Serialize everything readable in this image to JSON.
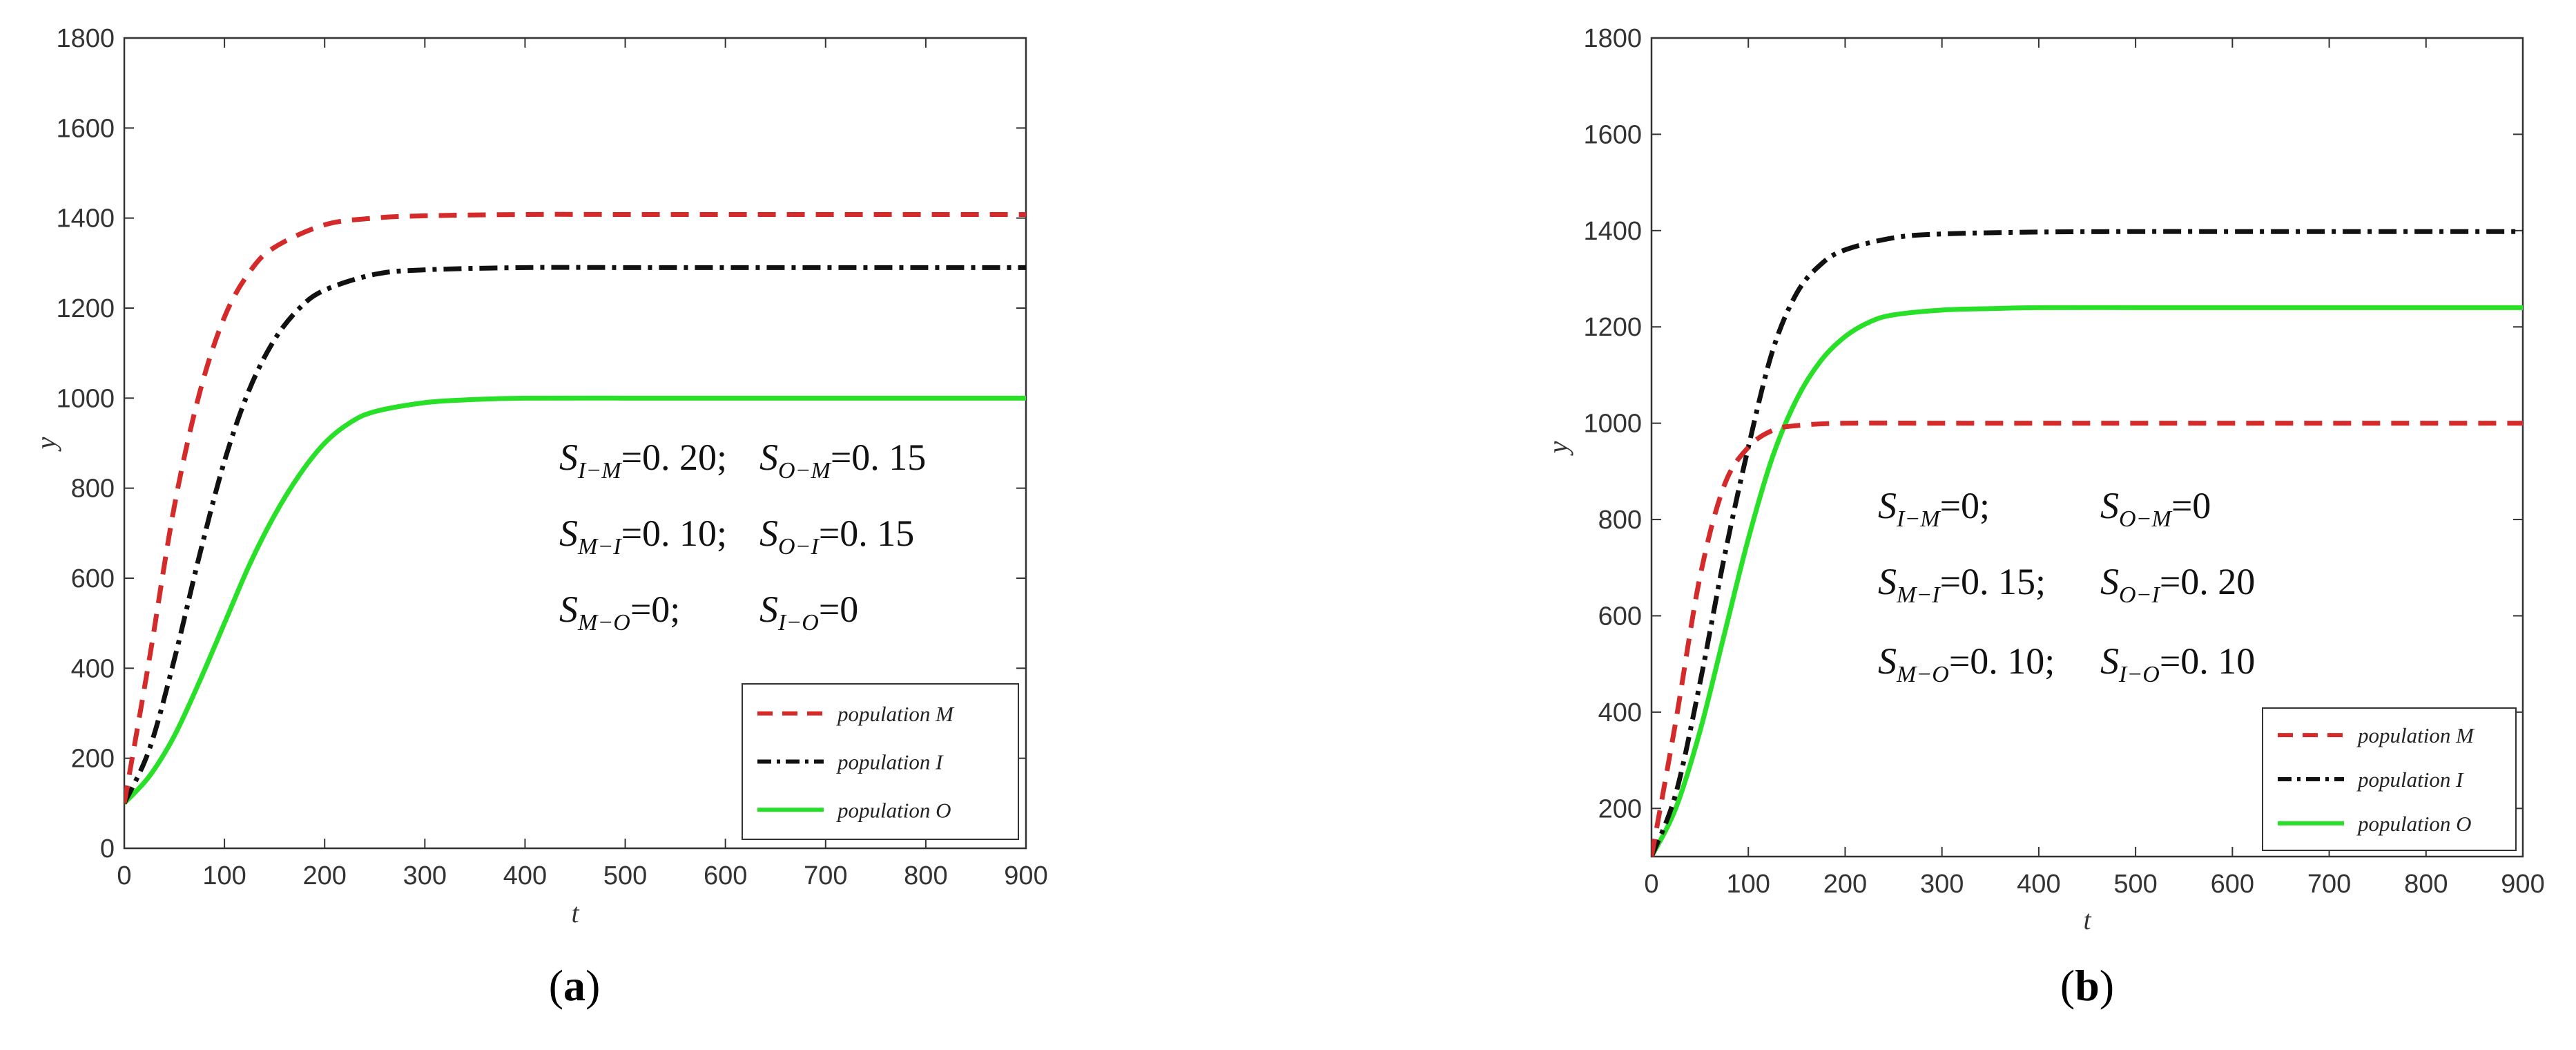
{
  "chart_data": [
    {
      "type": "line",
      "panel_label": "a",
      "xlabel": "t",
      "ylabel": "y",
      "xlim": [
        0,
        900
      ],
      "ylim": [
        0,
        1800
      ],
      "xticks": [
        0,
        100,
        200,
        300,
        400,
        500,
        600,
        700,
        800,
        900
      ],
      "yticks": [
        0,
        200,
        400,
        600,
        800,
        1000,
        1200,
        1400,
        1600,
        1800
      ],
      "legend_position": "bottom-right",
      "series": [
        {
          "name": "population M",
          "color": "#d42a2a",
          "style": "dashed",
          "x": [
            0,
            25,
            50,
            75,
            100,
            125,
            150,
            200,
            250,
            300,
            400,
            500,
            600,
            700,
            800,
            900
          ],
          "y": [
            100,
            420,
            760,
            1010,
            1180,
            1280,
            1335,
            1385,
            1400,
            1405,
            1408,
            1408,
            1408,
            1408,
            1408,
            1408
          ]
        },
        {
          "name": "population I",
          "color": "#111111",
          "style": "dashdot",
          "x": [
            0,
            25,
            50,
            75,
            100,
            125,
            150,
            175,
            200,
            250,
            300,
            400,
            500,
            600,
            700,
            800,
            900
          ],
          "y": [
            100,
            220,
            420,
            650,
            860,
            1020,
            1130,
            1200,
            1240,
            1275,
            1285,
            1290,
            1290,
            1290,
            1290,
            1290,
            1290
          ]
        },
        {
          "name": "population O",
          "color": "#28e028",
          "style": "solid",
          "x": [
            0,
            25,
            50,
            75,
            100,
            125,
            150,
            175,
            200,
            225,
            250,
            300,
            350,
            400,
            500,
            600,
            700,
            800,
            900
          ],
          "y": [
            100,
            160,
            250,
            370,
            500,
            630,
            740,
            830,
            900,
            945,
            970,
            990,
            997,
            1000,
            1000,
            1000,
            1000,
            1000,
            1000
          ]
        }
      ],
      "annotations": [
        {
          "items": [
            {
              "S": "S",
              "sub": "I−M",
              "val": "=0. 20;"
            },
            {
              "S": "S",
              "sub": "O−M",
              "val": "=0. 15"
            }
          ]
        },
        {
          "items": [
            {
              "S": "S",
              "sub": "M−I",
              "val": "=0. 10;"
            },
            {
              "S": "S",
              "sub": "O−I",
              "val": "=0. 15"
            }
          ]
        },
        {
          "items": [
            {
              "S": "S",
              "sub": "M−O",
              "val": "=0;"
            },
            {
              "S": "S",
              "sub": "I−O",
              "val": "=0"
            }
          ]
        }
      ]
    },
    {
      "type": "line",
      "panel_label": "b",
      "xlabel": "t",
      "ylabel": "y",
      "xlim": [
        0,
        900
      ],
      "ylim": [
        100,
        1800
      ],
      "xticks": [
        0,
        100,
        200,
        300,
        400,
        500,
        600,
        700,
        800,
        900
      ],
      "yticks": [
        200,
        400,
        600,
        800,
        1000,
        1200,
        1400,
        1600,
        1800
      ],
      "legend_position": "bottom-right",
      "series": [
        {
          "name": "population M",
          "color": "#d42a2a",
          "style": "dashed",
          "x": [
            0,
            25,
            50,
            75,
            100,
            125,
            150,
            200,
            300,
            400,
            500,
            600,
            700,
            800,
            900
          ],
          "y": [
            100,
            380,
            680,
            870,
            950,
            985,
            995,
            1000,
            1000,
            1000,
            1000,
            1000,
            1000,
            1000,
            1000
          ]
        },
        {
          "name": "population I",
          "color": "#111111",
          "style": "dashdot",
          "x": [
            0,
            25,
            50,
            75,
            100,
            125,
            150,
            175,
            200,
            250,
            300,
            400,
            500,
            600,
            700,
            800,
            900
          ],
          "y": [
            100,
            230,
            460,
            720,
            950,
            1150,
            1270,
            1330,
            1360,
            1385,
            1393,
            1397,
            1398,
            1398,
            1398,
            1398,
            1398
          ]
        },
        {
          "name": "population O",
          "color": "#28e028",
          "style": "solid",
          "x": [
            0,
            25,
            50,
            75,
            100,
            125,
            150,
            175,
            200,
            225,
            250,
            300,
            350,
            400,
            500,
            600,
            700,
            800,
            900
          ],
          "y": [
            100,
            200,
            360,
            560,
            760,
            930,
            1050,
            1130,
            1180,
            1210,
            1225,
            1235,
            1238,
            1240,
            1240,
            1240,
            1240,
            1240,
            1240
          ]
        }
      ],
      "annotations": [
        {
          "items": [
            {
              "S": "S",
              "sub": "I−M",
              "val": "=0;"
            },
            {
              "S": "S",
              "sub": "O−M",
              "val": "=0"
            }
          ]
        },
        {
          "items": [
            {
              "S": "S",
              "sub": "M−I",
              "val": "=0. 15;"
            },
            {
              "S": "S",
              "sub": "O−I",
              "val": "=0. 20"
            }
          ]
        },
        {
          "items": [
            {
              "S": "S",
              "sub": "M−O",
              "val": "=0. 10;"
            },
            {
              "S": "S",
              "sub": "I−O",
              "val": "=0. 10"
            }
          ]
        }
      ]
    }
  ]
}
